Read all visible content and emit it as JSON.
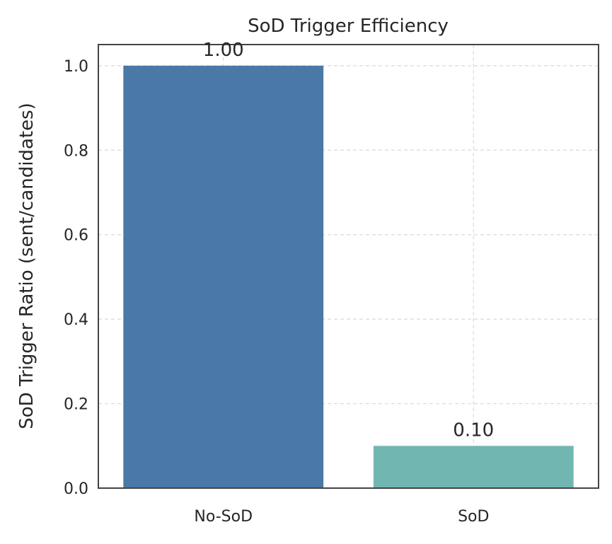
{
  "chart_data": {
    "type": "bar",
    "title": "SoD Trigger Efficiency",
    "xlabel": "",
    "ylabel": "SoD Trigger Ratio (sent/candidates)",
    "categories": [
      "No-SoD",
      "SoD"
    ],
    "values": [
      1.0,
      0.1
    ],
    "value_labels": [
      "1.00",
      "0.10"
    ],
    "bar_colors": [
      "#4a78a7",
      "#72b6b1"
    ],
    "ylim": [
      0,
      1.05
    ],
    "yticks": [
      0.0,
      0.2,
      0.4,
      0.6,
      0.8,
      1.0
    ],
    "ytick_labels": [
      "0.0",
      "0.2",
      "0.4",
      "0.6",
      "0.8",
      "1.0"
    ],
    "grid": true,
    "legend": "none"
  }
}
